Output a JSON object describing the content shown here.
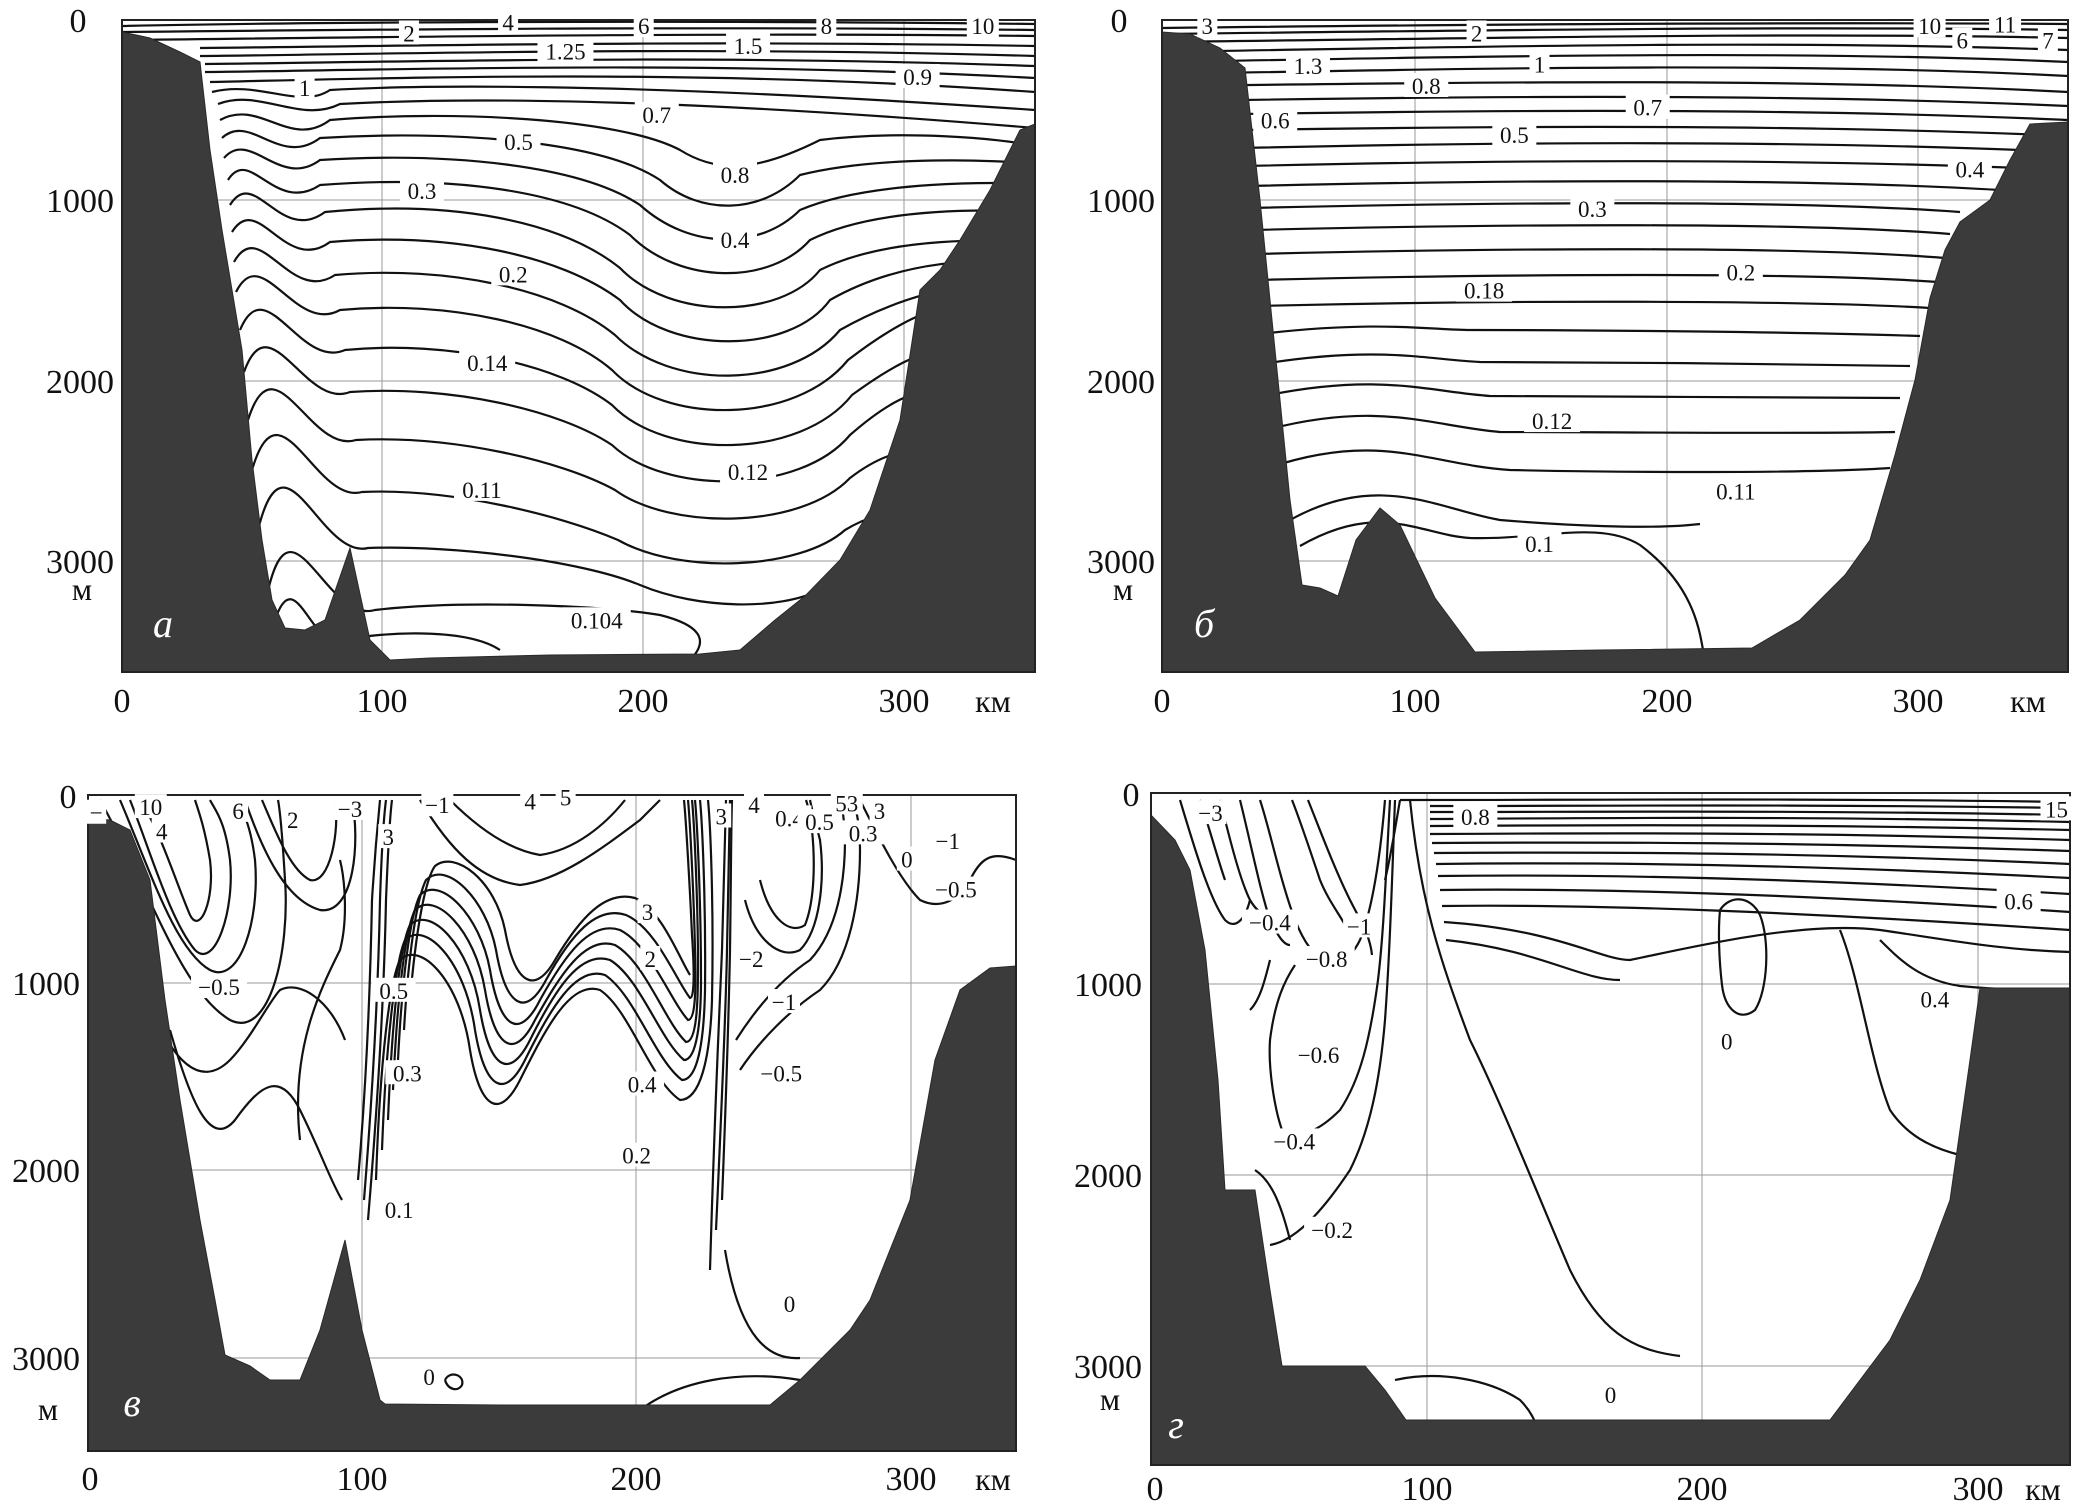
{
  "figure": {
    "unit_x": "км",
    "unit_y": "м"
  },
  "chart_data": [
    {
      "type": "contour",
      "panel_label": "а",
      "xlim": [
        0,
        350
      ],
      "ylim": [
        3600,
        0
      ],
      "x_ticks": [
        0,
        100,
        200,
        300
      ],
      "y_ticks": [
        0,
        1000,
        2000,
        3000
      ],
      "contour_labels": [
        {
          "x": 110,
          "y": 80,
          "text": "2"
        },
        {
          "x": 148,
          "y": 20,
          "text": "4"
        },
        {
          "x": 200,
          "y": 40,
          "text": "6"
        },
        {
          "x": 270,
          "y": 40,
          "text": "8"
        },
        {
          "x": 330,
          "y": 40,
          "text": "10"
        },
        {
          "x": 170,
          "y": 180,
          "text": "1.25"
        },
        {
          "x": 240,
          "y": 150,
          "text": "1.5"
        },
        {
          "x": 305,
          "y": 320,
          "text": "0.9"
        },
        {
          "x": 70,
          "y": 380,
          "text": "1"
        },
        {
          "x": 205,
          "y": 530,
          "text": "0.7"
        },
        {
          "x": 152,
          "y": 680,
          "text": "0.5"
        },
        {
          "x": 235,
          "y": 860,
          "text": "0.8"
        },
        {
          "x": 115,
          "y": 950,
          "text": "0.3"
        },
        {
          "x": 235,
          "y": 1220,
          "text": "0.4"
        },
        {
          "x": 150,
          "y": 1410,
          "text": "0.2"
        },
        {
          "x": 140,
          "y": 1900,
          "text": "0.14"
        },
        {
          "x": 138,
          "y": 2600,
          "text": "0.11"
        },
        {
          "x": 240,
          "y": 2500,
          "text": "0.12"
        },
        {
          "x": 182,
          "y": 3320,
          "text": "0.104"
        }
      ]
    },
    {
      "type": "contour",
      "panel_label": "б",
      "xlim": [
        0,
        360
      ],
      "ylim": [
        3600,
        0
      ],
      "x_ticks": [
        0,
        100,
        200,
        300
      ],
      "y_ticks": [
        0,
        1000,
        2000,
        3000
      ],
      "contour_labels": [
        {
          "x": 18,
          "y": 40,
          "text": "3"
        },
        {
          "x": 125,
          "y": 80,
          "text": "2"
        },
        {
          "x": 305,
          "y": 40,
          "text": "10"
        },
        {
          "x": 335,
          "y": 30,
          "text": "11"
        },
        {
          "x": 318,
          "y": 120,
          "text": "6"
        },
        {
          "x": 352,
          "y": 120,
          "text": "7"
        },
        {
          "x": 58,
          "y": 260,
          "text": "1.3"
        },
        {
          "x": 150,
          "y": 250,
          "text": "1"
        },
        {
          "x": 105,
          "y": 370,
          "text": "0.8"
        },
        {
          "x": 193,
          "y": 490,
          "text": "0.7"
        },
        {
          "x": 45,
          "y": 560,
          "text": "0.6"
        },
        {
          "x": 140,
          "y": 640,
          "text": "0.5"
        },
        {
          "x": 321,
          "y": 830,
          "text": "0.4"
        },
        {
          "x": 171,
          "y": 1050,
          "text": "0.3"
        },
        {
          "x": 230,
          "y": 1400,
          "text": "0.2"
        },
        {
          "x": 128,
          "y": 1500,
          "text": "0.18"
        },
        {
          "x": 155,
          "y": 2220,
          "text": "0.12"
        },
        {
          "x": 228,
          "y": 2610,
          "text": "0.11"
        },
        {
          "x": 150,
          "y": 2900,
          "text": "0.1"
        }
      ]
    },
    {
      "type": "contour",
      "panel_label": "в",
      "xlim": [
        0,
        340
      ],
      "ylim": [
        3500,
        0
      ],
      "x_ticks": [
        0,
        100,
        200,
        300
      ],
      "y_ticks": [
        0,
        1000,
        2000,
        3000
      ],
      "contour_labels": [
        {
          "x": 23,
          "y": 70,
          "text": "10"
        },
        {
          "x": 3,
          "y": 100,
          "text": "−"
        },
        {
          "x": 55,
          "y": 90,
          "text": "6"
        },
        {
          "x": 27,
          "y": 200,
          "text": "4"
        },
        {
          "x": 75,
          "y": 140,
          "text": "2"
        },
        {
          "x": 96,
          "y": 80,
          "text": "−3"
        },
        {
          "x": 128,
          "y": 60,
          "text": "−1"
        },
        {
          "x": 110,
          "y": 230,
          "text": "3"
        },
        {
          "x": 162,
          "y": 40,
          "text": "4"
        },
        {
          "x": 175,
          "y": 20,
          "text": "5"
        },
        {
          "x": 244,
          "y": 60,
          "text": "4"
        },
        {
          "x": 232,
          "y": 120,
          "text": "3"
        },
        {
          "x": 257,
          "y": 130,
          "text": "0.4"
        },
        {
          "x": 268,
          "y": 150,
          "text": "0.5"
        },
        {
          "x": 290,
          "y": 90,
          "text": "3"
        },
        {
          "x": 278,
          "y": 50,
          "text": "53"
        },
        {
          "x": 284,
          "y": 210,
          "text": "0.3"
        },
        {
          "x": 315,
          "y": 250,
          "text": "−1"
        },
        {
          "x": 300,
          "y": 350,
          "text": "0"
        },
        {
          "x": 318,
          "y": 510,
          "text": "−0.5"
        },
        {
          "x": 205,
          "y": 630,
          "text": "3"
        },
        {
          "x": 206,
          "y": 880,
          "text": "2"
        },
        {
          "x": 243,
          "y": 880,
          "text": "−2"
        },
        {
          "x": 255,
          "y": 1110,
          "text": "−1"
        },
        {
          "x": 48,
          "y": 1030,
          "text": "−0.5"
        },
        {
          "x": 112,
          "y": 1050,
          "text": "0.5"
        },
        {
          "x": 117,
          "y": 1490,
          "text": "0.3"
        },
        {
          "x": 203,
          "y": 1550,
          "text": "0.4"
        },
        {
          "x": 254,
          "y": 1490,
          "text": "−0.5"
        },
        {
          "x": 201,
          "y": 1930,
          "text": "0.2"
        },
        {
          "x": 114,
          "y": 2220,
          "text": "0.1"
        },
        {
          "x": 257,
          "y": 2720,
          "text": "0"
        },
        {
          "x": 125,
          "y": 3110,
          "text": "0"
        }
      ]
    },
    {
      "type": "contour",
      "panel_label": "г",
      "xlim": [
        0,
        340
      ],
      "ylim": [
        3500,
        0
      ],
      "x_ticks": [
        0,
        100,
        200,
        300
      ],
      "y_ticks": [
        0,
        1000,
        2000,
        3000
      ],
      "contour_labels": [
        {
          "x": 22,
          "y": 110,
          "text": "−3"
        },
        {
          "x": 120,
          "y": 130,
          "text": "0.8"
        },
        {
          "x": 335,
          "y": 90,
          "text": "15"
        },
        {
          "x": 77,
          "y": 700,
          "text": "−1"
        },
        {
          "x": 44,
          "y": 680,
          "text": "−0.4"
        },
        {
          "x": 65,
          "y": 870,
          "text": "−0.8"
        },
        {
          "x": 321,
          "y": 570,
          "text": "0.6"
        },
        {
          "x": 290,
          "y": 1080,
          "text": "0.4"
        },
        {
          "x": 213,
          "y": 1300,
          "text": "0"
        },
        {
          "x": 62,
          "y": 1370,
          "text": "−0.6"
        },
        {
          "x": 53,
          "y": 1820,
          "text": "−0.4"
        },
        {
          "x": 67,
          "y": 2280,
          "text": "−0.2"
        },
        {
          "x": 170,
          "y": 3140,
          "text": "0"
        }
      ]
    }
  ]
}
